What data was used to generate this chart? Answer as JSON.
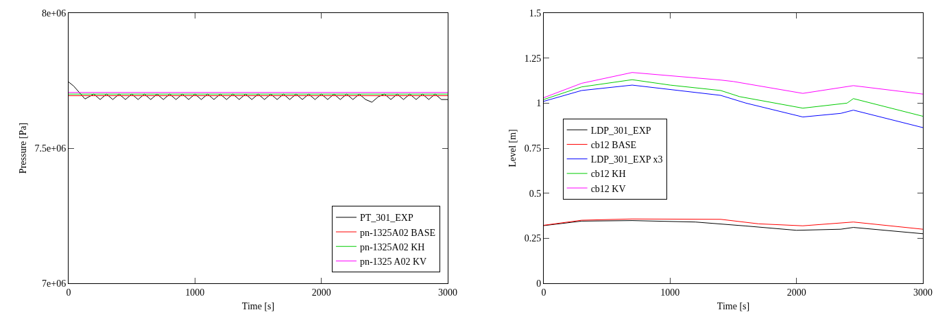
{
  "chart_data": [
    {
      "type": "line",
      "xlabel": "Time [s]",
      "ylabel": "Pressure [Pa]",
      "xlim": [
        0,
        3000
      ],
      "ylim": [
        7000000,
        8000000
      ],
      "xticks": [
        0,
        1000,
        2000,
        3000
      ],
      "yticks": [
        {
          "value": 7000000,
          "label": "7e+06"
        },
        {
          "value": 7500000,
          "label": "7.5e+06"
        },
        {
          "value": 8000000,
          "label": "8e+06"
        }
      ],
      "legend": "bottom right",
      "series": [
        {
          "name": "PT_301_EXP",
          "color": "#000000",
          "x": [
            0,
            40,
            130,
            200,
            250,
            300,
            350,
            400,
            450,
            500,
            550,
            600,
            650,
            700,
            750,
            800,
            850,
            900,
            950,
            1000,
            1050,
            1100,
            1150,
            1200,
            1250,
            1300,
            1350,
            1400,
            1450,
            1500,
            1550,
            1600,
            1650,
            1700,
            1750,
            1800,
            1850,
            1900,
            1950,
            2000,
            2050,
            2100,
            2150,
            2200,
            2250,
            2300,
            2350,
            2400,
            2450,
            2500,
            2550,
            2600,
            2650,
            2700,
            2750,
            2800,
            2850,
            2900,
            2950,
            3000
          ],
          "values": [
            7745000,
            7730000,
            7682000,
            7700000,
            7680000,
            7700000,
            7680000,
            7700000,
            7680000,
            7700000,
            7680000,
            7700000,
            7680000,
            7700000,
            7680000,
            7700000,
            7680000,
            7700000,
            7680000,
            7700000,
            7680000,
            7700000,
            7680000,
            7700000,
            7680000,
            7700000,
            7680000,
            7700000,
            7680000,
            7700000,
            7680000,
            7700000,
            7680000,
            7700000,
            7680000,
            7700000,
            7680000,
            7700000,
            7680000,
            7700000,
            7680000,
            7700000,
            7680000,
            7700000,
            7680000,
            7700000,
            7680000,
            7670000,
            7690000,
            7700000,
            7680000,
            7700000,
            7680000,
            7700000,
            7680000,
            7700000,
            7680000,
            7700000,
            7680000,
            7680000
          ]
        },
        {
          "name": "pn-1325A02 BASE",
          "color": "#ff0000",
          "x": [
            0,
            3000
          ],
          "values": [
            7694000,
            7694000
          ]
        },
        {
          "name": "pn-1325A02 KH",
          "color": "#00cc00",
          "x": [
            0,
            3000
          ],
          "values": [
            7700000,
            7700000
          ]
        },
        {
          "name": "pn-1325 A02 KV",
          "color": "#ff00ff",
          "x": [
            0,
            3000
          ],
          "values": [
            7706000,
            7706000
          ]
        }
      ]
    },
    {
      "type": "line",
      "xlabel": "Time [s]",
      "ylabel": "Level [m]",
      "xlim": [
        0,
        3000
      ],
      "ylim": [
        0,
        1.5
      ],
      "xticks": [
        0,
        1000,
        2000,
        3000
      ],
      "yticks": [
        0,
        0.25,
        0.5,
        0.75,
        1,
        1.25,
        1.5
      ],
      "legend": "left",
      "series": [
        {
          "name": "LDP_301_EXP",
          "color": "#000000",
          "x": [
            0,
            300,
            700,
            1200,
            1600,
            2000,
            2350,
            2450,
            3000
          ],
          "values": [
            0.32,
            0.345,
            0.348,
            0.34,
            0.318,
            0.294,
            0.3,
            0.31,
            0.275
          ]
        },
        {
          "name": "cb12 BASE",
          "color": "#ff0000",
          "x": [
            0,
            300,
            700,
            1400,
            1700,
            2050,
            2450,
            3000
          ],
          "values": [
            0.322,
            0.35,
            0.357,
            0.355,
            0.33,
            0.319,
            0.34,
            0.3
          ]
        },
        {
          "name": "LDP_301_EXP x3",
          "color": "#0000ff",
          "x": [
            0,
            300,
            700,
            1400,
            1600,
            2050,
            2350,
            2450,
            3000
          ],
          "values": [
            1.01,
            1.07,
            1.1,
            1.043,
            1.0,
            0.923,
            0.943,
            0.961,
            0.864
          ]
        },
        {
          "name": "cb12 KH",
          "color": "#00cc00",
          "x": [
            0,
            300,
            700,
            1000,
            1400,
            1550,
            2050,
            2400,
            2450,
            3000
          ],
          "values": [
            1.02,
            1.09,
            1.13,
            1.1,
            1.07,
            1.036,
            0.972,
            1.0,
            1.025,
            0.927
          ]
        },
        {
          "name": "cb12 KV",
          "color": "#ff00ff",
          "x": [
            0,
            300,
            700,
            1400,
            1500,
            2050,
            2450,
            3000
          ],
          "values": [
            1.03,
            1.11,
            1.17,
            1.128,
            1.12,
            1.054,
            1.097,
            1.05
          ]
        }
      ]
    }
  ]
}
